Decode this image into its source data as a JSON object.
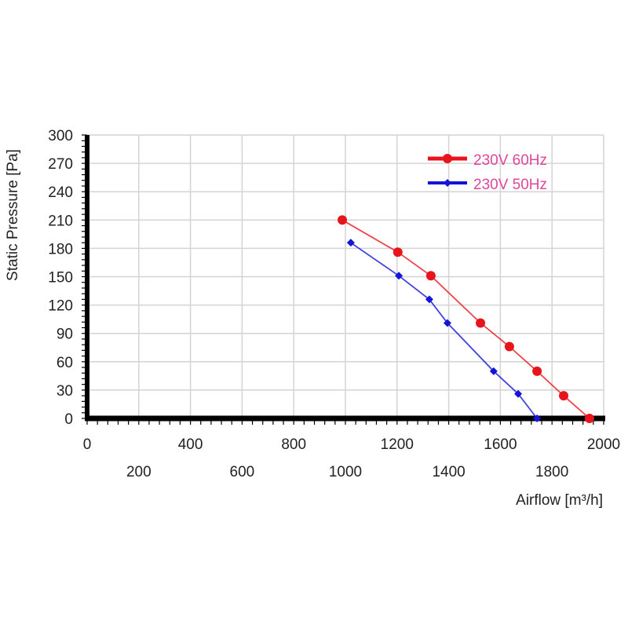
{
  "chart_data": {
    "type": "line",
    "title": "",
    "xlabel": "Airflow [m³/h]",
    "ylabel": "Static Pressure [Pa]",
    "xlim": [
      0,
      2000
    ],
    "ylim": [
      0,
      300
    ],
    "grid": true,
    "legend_position": "upper right",
    "x_ticks_top_row": [
      "0",
      "400",
      "800",
      "1200",
      "1600",
      "2000"
    ],
    "x_ticks_bottom_row": [
      "200",
      "600",
      "1000",
      "1400",
      "1800"
    ],
    "y_ticks": [
      "0",
      "30",
      "60",
      "90",
      "120",
      "150",
      "180",
      "210",
      "240",
      "270",
      "300"
    ],
    "series": [
      {
        "name": "230V 60Hz",
        "color": "#e8141c",
        "marker": "circle",
        "x": [
          988,
          1203,
          1331,
          1523,
          1635,
          1742,
          1845,
          1945
        ],
        "y": [
          210,
          176,
          151,
          101,
          76,
          50,
          24,
          0
        ]
      },
      {
        "name": "230V 50Hz",
        "color": "#1414d8",
        "marker": "diamond",
        "x": [
          1021,
          1207,
          1325,
          1395,
          1574,
          1669,
          1742
        ],
        "y": [
          186,
          151,
          126,
          101,
          50,
          26,
          0
        ]
      }
    ]
  },
  "legend": {
    "text_color": "#e0479a",
    "items": [
      "230V 60Hz",
      "230V 50Hz"
    ]
  }
}
